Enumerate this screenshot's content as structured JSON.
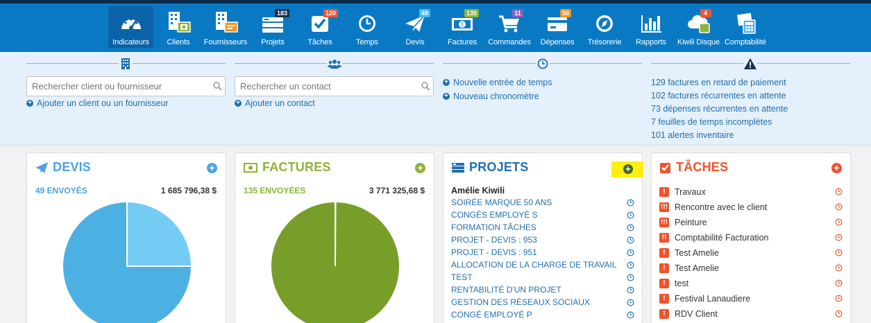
{
  "nav": {
    "items": [
      {
        "label": "Indicateurs",
        "icon": "gauge-icon",
        "badge": "",
        "active": true
      },
      {
        "label": "Clients",
        "icon": "clients-building-icon",
        "badge": ""
      },
      {
        "label": "Fournisseurs",
        "icon": "suppliers-building-icon",
        "badge": ""
      },
      {
        "label": "Projets",
        "icon": "projects-icon",
        "badge": "183",
        "badge_color": "#1a2f4a"
      },
      {
        "label": "Tâches",
        "icon": "tasks-check-icon",
        "badge": "120",
        "badge_color": "#e8583a"
      },
      {
        "label": "Temps",
        "icon": "clock-icon",
        "badge": ""
      },
      {
        "label": "Devis",
        "icon": "paper-plane-icon",
        "badge": "49",
        "badge_color": "#4fb7ea"
      },
      {
        "label": "Factures",
        "icon": "banknote-icon",
        "badge": "135",
        "badge_color": "#8db33a"
      },
      {
        "label": "Commandes",
        "icon": "cart-icon",
        "badge": "11",
        "badge_color": "#8b5fbf"
      },
      {
        "label": "Dépenses",
        "icon": "credit-card-icon",
        "badge": "50",
        "badge_color": "#f0961e"
      },
      {
        "label": "Trésorerie",
        "icon": "compass-icon",
        "badge": ""
      },
      {
        "label": "Rapports",
        "icon": "bar-chart-icon",
        "badge": ""
      },
      {
        "label": "Kiwili Disque",
        "icon": "cloud-icon",
        "badge": "4",
        "badge_color": "#e8583a"
      },
      {
        "label": "Comptabilité",
        "icon": "calculator-icon",
        "badge": ""
      }
    ]
  },
  "quick": {
    "clients": {
      "search_placeholder": "Rechercher client ou fournisseur",
      "add_link": "Ajouter un client ou un fournisseur"
    },
    "contacts": {
      "search_placeholder": "Rechercher un contact",
      "add_link": "Ajouter un contact"
    },
    "time": {
      "new_entry": "Nouvelle entrée de temps",
      "new_timer": "Nouveau chronomètre"
    },
    "alerts": [
      "129 factures en retard de paiement",
      "102 factures récurrentes en attente",
      "73 dépenses récurrentes en attente",
      "7 feuilles de temps incomplètes",
      "101 alertes inventaire"
    ]
  },
  "devis": {
    "title": "DEVIS",
    "sent": "49 ENVOYÉS",
    "amount": "1 685 796,38 $",
    "pie_fractions": [
      0.75,
      0.25
    ],
    "colors": {
      "main": "#4cb1e2",
      "secondary": "#74cbf4",
      "accent": "#4aa3e0"
    }
  },
  "factures": {
    "title": "FACTURES",
    "sent": "135 ENVOYÉES",
    "amount": "3 771 325,68 $",
    "pie_fractions": [
      0.999,
      0.001
    ],
    "colors": {
      "main": "#789e2a",
      "accent": "#8db33a"
    }
  },
  "projets": {
    "title": "PROJETS",
    "owner": "Amélie Kiwili",
    "items": [
      "SOIRÉE MARQUE 50 ANS",
      "CONGÉS EMPLOYÉ S",
      "FORMATION TÂCHES",
      "PROJET - DEVIS : 953",
      "PROJET - DEVIS : 951",
      "ALLOCATION DE LA CHARGE DE TRAVAIL",
      "TEST",
      "RENTABILITÉ D'UN PROJET",
      "GESTION DES RÉSEAUX SOCIAUX",
      "CONGÉ EMPLOYÉ P"
    ]
  },
  "taches": {
    "title": "TÂCHES",
    "items": [
      {
        "label": "Travaux",
        "priority": "!"
      },
      {
        "label": "Rencontre avec le client",
        "priority": "!!!"
      },
      {
        "label": "Peinture",
        "priority": "!!!"
      },
      {
        "label": "Comptabilité Facturation",
        "priority": "!!"
      },
      {
        "label": "Test Amelie",
        "priority": "!"
      },
      {
        "label": "Test Amelie",
        "priority": "!"
      },
      {
        "label": "test",
        "priority": "!"
      },
      {
        "label": "Festival Lanaudiere",
        "priority": "!"
      },
      {
        "label": "RDV Client",
        "priority": "!"
      }
    ]
  }
}
